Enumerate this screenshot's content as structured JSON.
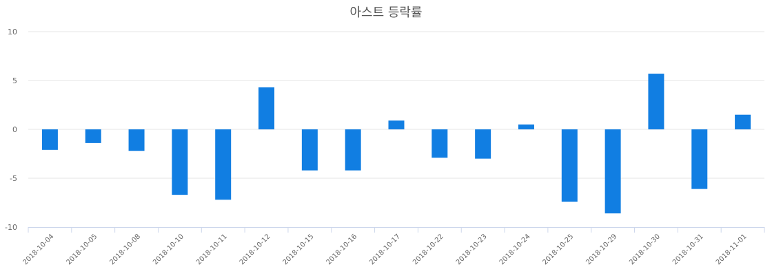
{
  "chart_data": {
    "type": "bar",
    "title": "아스트 등락률",
    "categories": [
      "2018-10-04",
      "2018-10-05",
      "2018-10-08",
      "2018-10-10",
      "2018-10-11",
      "2018-10-12",
      "2018-10-15",
      "2018-10-16",
      "2018-10-17",
      "2018-10-22",
      "2018-10-23",
      "2018-10-24",
      "2018-10-25",
      "2018-10-29",
      "2018-10-30",
      "2018-10-31",
      "2018-11-01"
    ],
    "values": [
      -2.1,
      -1.4,
      -2.2,
      -6.7,
      -7.2,
      4.3,
      -4.2,
      -4.2,
      0.9,
      -2.9,
      -3.0,
      0.5,
      -7.4,
      -8.6,
      5.7,
      -6.1,
      1.5
    ],
    "yticks": [
      "10",
      "5",
      "0",
      "-5",
      "-10"
    ],
    "ylim": [
      -10,
      10
    ],
    "xlabel": "",
    "ylabel": "",
    "grid": true,
    "bar_color": "#117ee2"
  }
}
